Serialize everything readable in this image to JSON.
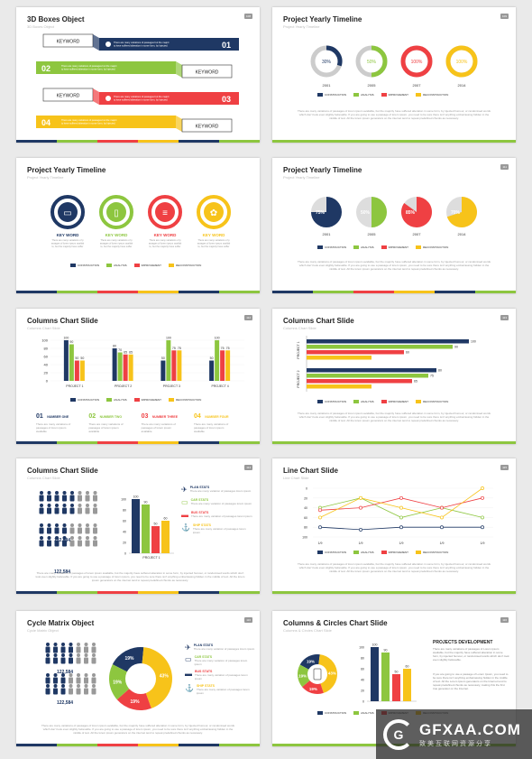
{
  "colors": {
    "navy": "#1f3864",
    "green": "#8dc63f",
    "red": "#ef4043",
    "yellow": "#f7c31a",
    "grey": "#cccccc"
  },
  "legend": [
    "CONSTRUCTION",
    "ANALYSIS",
    "IMPROVEMENT",
    "RECONSTRUCTION"
  ],
  "body_text": "There are many variations of passages of lorem ipsum available, but the majority have suffered alteration in some form, by injected humour, or randomised words which don't look even slightly believable. If you are going to use a passage of lorem ipsum, you need to be sure there isn't anything embarrassing hidden in the middle of text. All the lorem ipsum generators on the internet tend to repeat predefined chunks as necessary.",
  "slide1": {
    "title": "3D Boxes Object",
    "subtitle": "3D Boxes Object",
    "page": "108",
    "rows": [
      {
        "num": "01",
        "keyword": "KEYWORD",
        "text": "There are many variations of passages but the majority have suffered alteration in some form, by Injected."
      },
      {
        "num": "02",
        "keyword": "KEYWORD",
        "text": "There are many variations of passages but the majority have suffered alteration in some form, by Injected."
      },
      {
        "num": "03",
        "keyword": "KEYWORD",
        "text": "There are many variations of passages but the majority have suffered alteration in some form, by Injected."
      },
      {
        "num": "04",
        "keyword": "KEYWORD",
        "text": "There are many variations of passages but the majority have suffered alteration in some form, by Injected."
      }
    ]
  },
  "slide2": {
    "title": "Project Yearly Timeline",
    "subtitle": "Project Yearly Timeline",
    "page": "109",
    "items": [
      {
        "pct": "30%",
        "year": "2001"
      },
      {
        "pct": "50%",
        "year": "2005"
      },
      {
        "pct": "100%",
        "year": "2007"
      },
      {
        "pct": "100%",
        "year": "2014"
      }
    ]
  },
  "slide3": {
    "title": "Project Yearly Timeline",
    "subtitle": "Project Yearly Timeline",
    "items": [
      {
        "kw": "KEY WORD",
        "icon": "monitor-icon"
      },
      {
        "kw": "KEY WORD",
        "icon": "phone-icon"
      },
      {
        "kw": "KEY WORD",
        "icon": "stack-icon"
      },
      {
        "kw": "KEY WORD",
        "icon": "gears-icon"
      }
    ],
    "item_text": "There are many variations of passages of lorem ipsum available, but the majority have suffer"
  },
  "slide4": {
    "title": "Project Yearly Timeline",
    "subtitle": "Project Yearly Timeline",
    "page": "111",
    "items": [
      {
        "pct": "75%",
        "year": "2001"
      },
      {
        "pct": "50%",
        "year": "2005"
      },
      {
        "pct": "85%",
        "year": "2007"
      },
      {
        "pct": "70%",
        "year": "2014"
      }
    ]
  },
  "slide5": {
    "title": "Columns Chart Slide",
    "subtitle": "Columns Chart Slide",
    "page": "112",
    "chart_data": {
      "type": "bar",
      "categories": [
        "PROJECT 1",
        "PROJECT 2",
        "PROJECT 3",
        "PROJECT 4"
      ],
      "ylim": [
        0,
        100
      ],
      "yticks": [
        0,
        20,
        40,
        60,
        80,
        100
      ],
      "series": [
        {
          "name": "CONSTRUCTION",
          "values": [
            100,
            80,
            50,
            50
          ]
        },
        {
          "name": "ANALYSIS",
          "values": [
            90,
            70,
            100,
            100
          ]
        },
        {
          "name": "IMPROVEMENT",
          "values": [
            50,
            65,
            75,
            75
          ]
        },
        {
          "name": "RECONSTRUCTION",
          "values": [
            50,
            65,
            75,
            75
          ]
        }
      ]
    },
    "numbers": [
      {
        "n": "01",
        "label": "NUMBER ONE"
      },
      {
        "n": "02",
        "label": "NUMBER TWO"
      },
      {
        "n": "03",
        "label": "NUMBER THREE"
      },
      {
        "n": "04",
        "label": "NUMBER FOUR"
      }
    ],
    "num_text": "There are many variations of passages of lorem ipsum available"
  },
  "slide6": {
    "title": "Columns Chart Slide",
    "subtitle": "Columns Chart Slide",
    "page": "113",
    "chart_data": {
      "type": "bar",
      "orientation": "horizontal",
      "categories": [
        "PROJECT 1",
        "PROJECT 2"
      ],
      "series": [
        {
          "name": "CONSTRUCTION",
          "values": [
            100,
            80
          ]
        },
        {
          "name": "ANALYSIS",
          "values": [
            90,
            75
          ]
        },
        {
          "name": "IMPROVEMENT",
          "values": [
            60,
            65
          ]
        },
        {
          "name": "RECONSTRUCTION",
          "values": [
            40,
            40
          ]
        }
      ],
      "labels": [
        "100",
        "90",
        "60",
        "80",
        "75",
        "65"
      ]
    }
  },
  "slide7": {
    "title": "Columns Chart Slide",
    "subtitle": "Columns Chart Slide",
    "page": "114",
    "count1": "122,584",
    "count2": "122,584",
    "chart_data": {
      "type": "bar",
      "categories": [
        "PROJECT 1"
      ],
      "ylim": [
        0,
        100
      ],
      "yticks": [
        0,
        20,
        40,
        60,
        80,
        100
      ],
      "series": [
        {
          "name": "CONSTRUCTION",
          "values": [
            100
          ]
        },
        {
          "name": "ANALYSIS",
          "values": [
            90
          ]
        },
        {
          "name": "IMPROVEMENT",
          "values": [
            50
          ]
        },
        {
          "name": "RECONSTRUCTION",
          "values": [
            60
          ]
        }
      ]
    },
    "stats": [
      {
        "label": "PLAN STATS",
        "icon": "plane-icon"
      },
      {
        "label": "CAR STATS",
        "icon": "car-icon"
      },
      {
        "label": "BUS STATS",
        "icon": "bus-icon"
      },
      {
        "label": "SHIP STATS",
        "icon": "anchor-icon"
      }
    ],
    "stat_text": "There are many variation of passages lorem ipsum"
  },
  "slide8": {
    "title": "Line Chart Slide",
    "subtitle": "Line Chart Slide",
    "page": "115",
    "chart_data": {
      "type": "line",
      "categories": [
        "1/9",
        "1/9",
        "1/9",
        "1/9",
        "1/9"
      ],
      "yticks": [
        "0",
        "20",
        "40",
        "60",
        "80",
        "100"
      ],
      "series": [
        {
          "name": "CONSTRUCTION",
          "values": [
            80,
            85,
            80,
            80,
            80
          ]
        },
        {
          "name": "ANALYSIS",
          "values": [
            40,
            20,
            60,
            40,
            60
          ]
        },
        {
          "name": "IMPROVEMENT",
          "values": [
            45,
            40,
            20,
            40,
            20
          ]
        },
        {
          "name": "RECONSTRUCTION",
          "values": [
            60,
            20,
            40,
            60,
            0
          ]
        }
      ]
    }
  },
  "slide9": {
    "title": "Cycle Matrix Object",
    "subtitle": "Cycle Matrix Object",
    "page": "116",
    "count1": "122,584",
    "count2": "122,584",
    "chart_data": {
      "type": "pie",
      "values": [
        19,
        43,
        19,
        19
      ],
      "labels": [
        "19%",
        "43%",
        "19%",
        "19%"
      ]
    },
    "stats": [
      {
        "label": "PLAN STATS"
      },
      {
        "label": "CAR STATS"
      },
      {
        "label": "BUS STATS"
      },
      {
        "label": "SHIP STATS"
      }
    ],
    "stat_text": "There are many variation of passages lorem ipsum"
  },
  "slide10": {
    "title": "Columns & Circles Chart Slide",
    "subtitle": "Columns & Circles Chart Slide",
    "page": "116",
    "pie": {
      "labels": [
        "19%",
        "43%",
        "19%",
        "19%"
      ]
    },
    "chart_data": {
      "type": "bar",
      "ylim": [
        0,
        100
      ],
      "yticks": [
        0,
        20,
        40,
        60,
        80,
        100
      ],
      "series": [
        {
          "name": "CONSTRUCTION",
          "values": [
            100
          ]
        },
        {
          "name": "ANALYSIS",
          "values": [
            90
          ]
        },
        {
          "name": "IMPROVEMENT",
          "values": [
            50
          ]
        },
        {
          "name": "RECONSTRUCTION",
          "values": [
            60
          ]
        }
      ]
    },
    "dev_title": "PROJECTS DEVELOPMENT",
    "dev_text1": "There are many variations of passages of Lorem ipsum available, but the majority have suffered alteration in some form, by injected humour, or randomised words which don't look even slightly believable.",
    "dev_text2": "If you are going to use a passage of Lorem Ipsum, you need to be sure there isn't anything embarrassing hidden in the middle of text. All the Lorem Ipsum generators on the Internet tend to repeat predefined chunks as necessary, making this the first true generator on the Internet."
  },
  "watermark": {
    "text": "GFXAA.COM",
    "sub": "致美互联网资源分享",
    "logo": "G"
  }
}
